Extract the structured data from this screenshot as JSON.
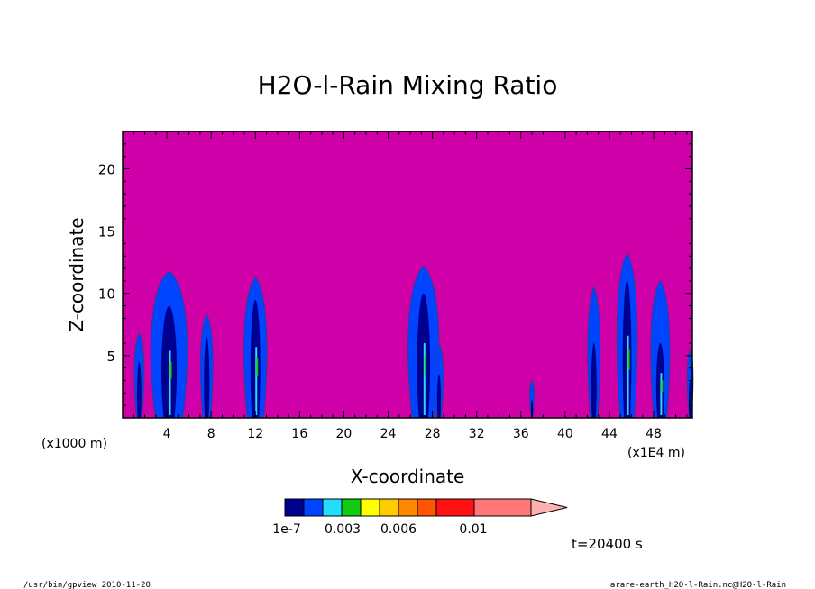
{
  "chart_data": {
    "type": "heatmap",
    "title": "H2O-l-Rain Mixing Ratio",
    "xlabel": "X-coordinate",
    "ylabel": "Z-coordinate",
    "x_unit_left": "(x1000 m)",
    "x_unit_right": "(x1E4 m)",
    "x_ticks": [
      "4",
      "8",
      "12",
      "16",
      "20",
      "24",
      "28",
      "32",
      "36",
      "40",
      "44",
      "48"
    ],
    "y_ticks": [
      "5",
      "10",
      "15",
      "20"
    ],
    "xlim": [
      0,
      51.5
    ],
    "ylim": [
      0,
      23
    ],
    "time_label": "t=20400 s",
    "colorbar": {
      "colors": [
        "#000090",
        "#0044ff",
        "#22ddff",
        "#11cc11",
        "#ffff00",
        "#ffcc00",
        "#ff8800",
        "#ff5500",
        "#ff1111",
        "#ff7777"
      ],
      "extend_color": "#ffb0b0",
      "labels": [
        "1e-7",
        "0.003",
        "0.006",
        "0.01"
      ],
      "background_color": "#d000a8"
    },
    "cells": [
      {
        "xc": 1.5,
        "w": 0.8,
        "top": 6.8,
        "core": [
          1.5,
          4.5
        ]
      },
      {
        "xc": 4.2,
        "w": 2.8,
        "top": 11.8,
        "core": [
          4.2,
          9.0
        ]
      },
      {
        "xc": 7.6,
        "w": 1.0,
        "top": 8.3,
        "core": [
          7.6,
          6.5
        ]
      },
      {
        "xc": 12.0,
        "w": 1.8,
        "top": 11.3,
        "core": [
          12.1,
          9.5
        ]
      },
      {
        "xc": 27.2,
        "w": 2.4,
        "top": 12.2,
        "core": [
          27.2,
          10.0
        ]
      },
      {
        "xc": 28.6,
        "w": 0.7,
        "top": 6.0,
        "core": [
          28.6,
          3.5
        ]
      },
      {
        "xc": 37.0,
        "w": 0.4,
        "top": 3.0,
        "core": [
          37.0,
          1.5
        ]
      },
      {
        "xc": 42.6,
        "w": 1.0,
        "top": 10.5,
        "core": [
          42.8,
          6.0
        ]
      },
      {
        "xc": 45.6,
        "w": 1.6,
        "top": 13.2,
        "core": [
          45.6,
          11.0
        ]
      },
      {
        "xc": 48.6,
        "w": 1.5,
        "top": 11.0,
        "core": [
          48.6,
          6.0
        ]
      },
      {
        "xc": 51.3,
        "w": 0.5,
        "top": 5.5,
        "core": [
          51.3,
          3.0
        ]
      }
    ]
  },
  "footer": {
    "left": "/usr/bin/gpview  2010-11-20",
    "right": "arare-earth_H2O-l-Rain.nc@H2O-l-Rain"
  }
}
